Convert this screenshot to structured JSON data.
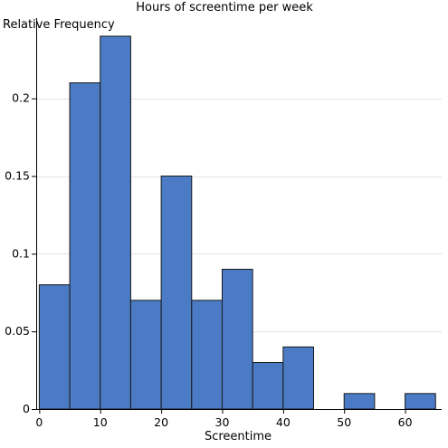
{
  "chart_data": {
    "type": "bar",
    "title": "Hours of screentime per week",
    "xlabel": "Screentime",
    "ylabel": "Relative Frequency",
    "bin_width": 5,
    "bin_starts": [
      0,
      5,
      10,
      15,
      20,
      25,
      30,
      35,
      40,
      45,
      50,
      55,
      60
    ],
    "values": [
      0.08,
      0.21,
      0.24,
      0.07,
      0.15,
      0.07,
      0.09,
      0.03,
      0.04,
      0,
      0.01,
      0,
      0.01
    ],
    "xlim": [
      -0.5,
      66
    ],
    "ylim": [
      0,
      0.24
    ],
    "xticks": [
      0,
      10,
      20,
      30,
      40,
      50,
      60
    ],
    "xtick_labels": [
      "0",
      "10",
      "20",
      "30",
      "40",
      "50",
      "60"
    ],
    "yticks": [
      0,
      0.05,
      0.1,
      0.15,
      0.2
    ],
    "ytick_labels": [
      "0",
      "0.05",
      "0.1",
      "0.15",
      "0.2"
    ],
    "grid": "horizontal",
    "bar_color": "#4a7bc4",
    "bar_edge_color": "#1a1a1a"
  }
}
